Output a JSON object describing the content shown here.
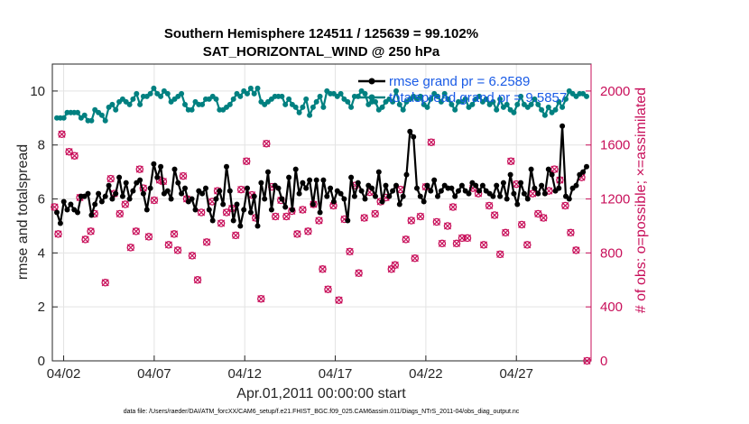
{
  "chart_data": {
    "type": "line",
    "title": "Southern Hemisphere 124511 / 125639 = 99.102%",
    "subtitle": "SAT_HORIZONTAL_WIND @ 250 hPa",
    "xlabel": "Apr.01,2011 00:00:00 start",
    "ylabel": "rmse and totalspread",
    "ylabel_right": "# of obs: o=possible; ×=assimilated",
    "footnote": "data file: /Users/raeder/DAI/ATM_forcXX/CAM6_setup/f.e21.FHIST_BGC.f09_025.CAM6assim.011/Diags_NTrS_2011-04/obs_diag_output.nc",
    "x_tick_labels": [
      "04/02",
      "04/07",
      "04/12",
      "04/17",
      "04/22",
      "04/27"
    ],
    "x_tick_days": [
      1,
      6,
      11,
      16,
      21,
      26
    ],
    "xlim_days": [
      0.375,
      30.125
    ],
    "ylim": [
      0,
      11
    ],
    "y_ticks": [
      "0",
      "2",
      "4",
      "6",
      "8",
      "10"
    ],
    "ylim_right": [
      0,
      2200
    ],
    "y_ticks_right": [
      "0",
      "400",
      "800",
      "1200",
      "1600",
      "2000"
    ],
    "grid": true,
    "legend_position": "top-right",
    "colors": {
      "rmse": "#000000",
      "spread": "#008080",
      "obs": "#c80f5a",
      "legend_text": "#1a5be6"
    },
    "series": [
      {
        "name": "rmse grand pr = 6.2589",
        "color": "#000000",
        "axis": "left",
        "values": [
          5.5,
          5.1,
          5.9,
          5.6,
          5.8,
          5.6,
          5.5,
          6.1,
          6.1,
          6.2,
          5.4,
          5.8,
          6.2,
          5.9,
          6.1,
          6.5,
          6.0,
          6.2,
          6.8,
          6.1,
          6.6,
          6.0,
          6.3,
          6.6,
          6.7,
          6.2,
          5.6,
          6.4,
          7.3,
          6.8,
          7.2,
          6.2,
          6.3,
          6.0,
          7.1,
          6.6,
          6.2,
          6.4,
          5.9,
          6.0,
          5.6,
          6.3,
          6.2,
          6.4,
          5.6,
          5.2,
          6.0,
          6.3,
          5.8,
          7.2,
          6.3,
          5.2,
          5.8,
          5.0,
          5.6,
          6.4,
          5.5,
          6.1,
          5.0,
          6.6,
          6.0,
          7.0,
          5.6,
          6.5,
          6.4,
          6.0,
          5.7,
          6.8,
          5.6,
          7.1,
          6.2,
          6.6,
          6.4,
          6.7,
          5.8,
          6.7,
          5.5,
          6.7,
          6.1,
          6.4,
          5.9,
          6.3,
          6.2,
          6.0,
          5.2,
          6.8,
          6.1,
          6.6,
          6.3,
          6.0,
          6.5,
          6.4,
          6.1,
          7.0,
          5.9,
          6.5,
          6.1,
          6.3,
          6.5,
          5.8,
          6.1,
          6.9,
          8.5,
          8.3,
          6.4,
          6.1,
          5.9,
          6.5,
          6.3,
          6.7,
          6.1,
          6.3,
          6.5,
          6.4,
          6.4,
          6.1,
          6.3,
          6.5,
          6.3,
          6.2,
          6.6,
          6.5,
          6.3,
          6.5,
          6.3,
          6.2,
          6.1,
          6.5,
          6.1,
          6.6,
          6.0,
          6.9,
          6.2,
          5.8,
          6.6,
          6.2,
          6.0,
          7.1,
          6.4,
          6.2,
          6.5,
          6.2,
          7.1,
          6.9,
          6.3,
          6.4,
          8.7,
          6.1,
          6.0,
          6.4,
          6.5,
          6.9,
          7.0,
          7.2
        ]
      },
      {
        "name": "totalspread grand pr = 9.5857",
        "color": "#008080",
        "axis": "left",
        "values": [
          9.0,
          9.0,
          9.0,
          9.2,
          9.2,
          9.2,
          9.2,
          9.0,
          9.1,
          8.9,
          8.9,
          9.3,
          9.2,
          9.1,
          8.9,
          9.4,
          9.5,
          9.3,
          9.6,
          9.7,
          9.6,
          9.5,
          9.7,
          9.9,
          9.5,
          9.8,
          9.8,
          9.9,
          10.1,
          9.9,
          9.8,
          10.0,
          9.9,
          9.6,
          9.7,
          9.8,
          9.9,
          9.5,
          9.3,
          9.3,
          9.6,
          9.5,
          9.5,
          9.7,
          9.7,
          9.8,
          9.7,
          9.3,
          9.3,
          9.4,
          9.5,
          9.7,
          9.9,
          9.8,
          10.0,
          9.9,
          10.1,
          9.9,
          10.1,
          9.6,
          9.5,
          9.6,
          9.7,
          9.8,
          9.8,
          9.8,
          9.5,
          9.7,
          9.5,
          9.4,
          9.2,
          9.4,
          9.7,
          9.1,
          9.4,
          9.6,
          9.8,
          9.4,
          10.0,
          9.9,
          9.9,
          9.8,
          9.9,
          9.7,
          9.6,
          9.4,
          9.8,
          9.8,
          10.0,
          9.9,
          9.5,
          9.6,
          9.6,
          9.3,
          9.4,
          9.6,
          9.7,
          9.6,
          10.0,
          9.5,
          9.3,
          9.6,
          9.7,
          9.8,
          9.7,
          9.8,
          9.5,
          9.4,
          9.7,
          9.9,
          9.8,
          9.6,
          9.9,
          9.7,
          9.5,
          9.3,
          9.6,
          9.6,
          9.7,
          9.4,
          9.5,
          9.7,
          9.8,
          9.6,
          9.7,
          9.5,
          9.6,
          9.3,
          9.7,
          9.4,
          9.5,
          9.3,
          9.2,
          9.5,
          9.8,
          9.5,
          9.4,
          9.5,
          9.7,
          9.5,
          9.3,
          9.1,
          9.4,
          9.2,
          9.3,
          9.6,
          9.4,
          9.7,
          10.0,
          9.9,
          9.8,
          9.9,
          9.9,
          9.8
        ]
      },
      {
        "name": "obs possible",
        "color": "#c80f5a",
        "axis": "right",
        "type": "scatter",
        "x_days": [
          0.5,
          0.7,
          0.9,
          1.3,
          1.6,
          1.9,
          2.2,
          2.5,
          2.7,
          3.3,
          3.6,
          3.8,
          4.1,
          4.4,
          4.7,
          5.0,
          5.2,
          5.4,
          5.7,
          6.0,
          6.3,
          6.5,
          6.8,
          7.1,
          7.3,
          7.6,
          7.8,
          8.1,
          8.4,
          8.6,
          8.9,
          9.2,
          9.5,
          9.7,
          10.0,
          10.3,
          10.5,
          10.8,
          11.1,
          11.4,
          11.6,
          11.9,
          12.2,
          12.5,
          12.7,
          13.0,
          13.3,
          13.6,
          13.9,
          14.2,
          14.5,
          14.8,
          15.1,
          15.3,
          15.6,
          15.9,
          16.2,
          16.5,
          16.8,
          17.1,
          17.3,
          17.6,
          17.9,
          18.2,
          18.5,
          18.8,
          19.1,
          19.3,
          19.6,
          19.9,
          20.2,
          20.4,
          20.7,
          21.0,
          21.3,
          21.6,
          21.9,
          22.2,
          22.5,
          22.7,
          23.0,
          23.3,
          23.6,
          23.9,
          24.2,
          24.5,
          24.8,
          25.1,
          25.4,
          25.7,
          26.0,
          26.3,
          26.6,
          26.9,
          27.2,
          27.5,
          27.8,
          28.1,
          28.4,
          28.7,
          29.0,
          29.3,
          29.6,
          29.9
        ],
        "values": [
          1140,
          940,
          1680,
          1550,
          1520,
          1210,
          900,
          960,
          1090,
          580,
          1350,
          1240,
          1090,
          1160,
          840,
          960,
          1420,
          1280,
          920,
          1190,
          1340,
          1330,
          860,
          940,
          820,
          1370,
          1200,
          780,
          600,
          1100,
          880,
          1180,
          1260,
          1020,
          1100,
          1130,
          930,
          1270,
          1480,
          1230,
          1060,
          460,
          1610,
          1290,
          1070,
          1190,
          1070,
          1110,
          940,
          1120,
          960,
          1160,
          1040,
          680,
          530,
          1150,
          450,
          1050,
          810,
          1300,
          650,
          1060,
          1250,
          1090,
          1180,
          1210,
          680,
          710,
          1270,
          900,
          1040,
          760,
          1070,
          1290,
          1620,
          1030,
          870,
          1000,
          1140,
          870,
          910,
          910,
          1280,
          1240,
          860,
          1150,
          1080,
          790,
          950,
          1480,
          1310,
          1010,
          860,
          1240,
          1090,
          1060,
          1260,
          1420,
          1340,
          1150,
          950,
          820,
          1360,
          0
        ],
        "values_hint_right_axis_units": "count"
      }
    ]
  }
}
